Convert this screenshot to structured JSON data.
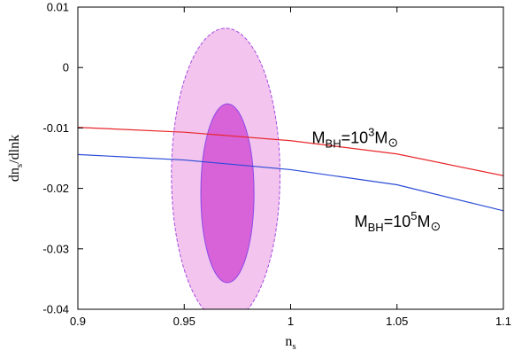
{
  "chart_data": {
    "type": "line",
    "title": "",
    "xlabel": "n_s",
    "ylabel": "dn_s/dlnk",
    "xlim": [
      0.9,
      1.1
    ],
    "ylim": [
      -0.04,
      0.01
    ],
    "grid": false,
    "xticks": [
      0.9,
      0.95,
      1.0,
      1.05,
      1.1
    ],
    "xtick_labels": [
      "0.9",
      "0.95",
      "1",
      "1.05",
      "1.1"
    ],
    "yticks": [
      -0.04,
      -0.03,
      -0.02,
      -0.01,
      0.0,
      0.01
    ],
    "ytick_labels": [
      "-0.04",
      "-0.03",
      "-0.02",
      "-0.01",
      "0",
      "0.01"
    ],
    "series": [
      {
        "annotation": "M_BH=10^3 M_⊙",
        "color": "#e8262a",
        "x": [
          0.9,
          0.95,
          1.0,
          1.05,
          1.1
        ],
        "y": [
          -0.0099,
          -0.0107,
          -0.0121,
          -0.0143,
          -0.0179
        ]
      },
      {
        "annotation": "M_BH=10^5 M_⊙",
        "color": "#2b4bd8",
        "x": [
          0.9,
          0.95,
          1.0,
          1.05,
          1.1
        ],
        "y": [
          -0.0144,
          -0.0153,
          -0.0169,
          -0.0194,
          -0.0237
        ]
      }
    ],
    "contours": [
      {
        "level": "95%",
        "fill": "#f3c4ee",
        "stroke": "#a74ce0",
        "dashed": true,
        "center": [
          0.9695,
          -0.0178
        ],
        "x_range": [
          0.944,
          0.995
        ],
        "y_range": [
          -0.0421,
          0.0065
        ]
      },
      {
        "level": "68%",
        "fill": "#d862d8",
        "stroke": "#8c4ce8",
        "dashed": false,
        "center": [
          0.9703,
          -0.0208
        ],
        "x_range": [
          0.9578,
          0.9828
        ],
        "y_range": [
          -0.0356,
          -0.006
        ]
      }
    ],
    "annotations": [
      {
        "base": "M",
        "sub": "BH",
        "eq": "=10",
        "sup": "3",
        "unit": "M",
        "symbol": "⊙",
        "x": 1.01,
        "y": -0.0125
      },
      {
        "base": "M",
        "sub": "BH",
        "eq": "=10",
        "sup": "5",
        "unit": "M",
        "symbol": "⊙",
        "x": 1.03,
        "y": -0.0264
      }
    ]
  }
}
